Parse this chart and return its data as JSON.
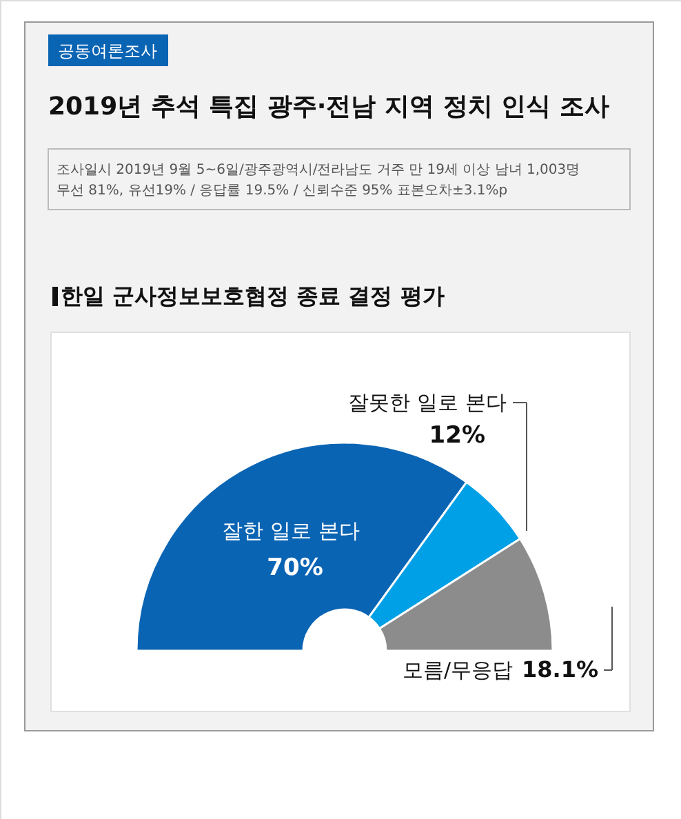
{
  "chart_data": {
    "type": "donut",
    "title": "2019년 추석 특집 광주·전남 지역 정치 인식 조사",
    "subtitle": "한일 군사정보보호협정 종료 결정 평가",
    "annotations": [
      "공동여론조사",
      "조사일시 2019년 9월 5~6일/광주광역시/전라남도 거주 만 19세 이상 남녀 1,003명",
      "무선 81%, 유선19% / 응답률 19.5% / 신뢰수준 95% 표본오차±3.1%p"
    ],
    "categories": [
      "잘한 일로 본다",
      "잘못한 일로 본다",
      "모름/무응답"
    ],
    "values": [
      70,
      12,
      18.1
    ],
    "colors": [
      "#0a64b4",
      "#00a0e6",
      "#8c8c8c"
    ],
    "value_labels": [
      "70%",
      "12%",
      "18.1%"
    ]
  }
}
